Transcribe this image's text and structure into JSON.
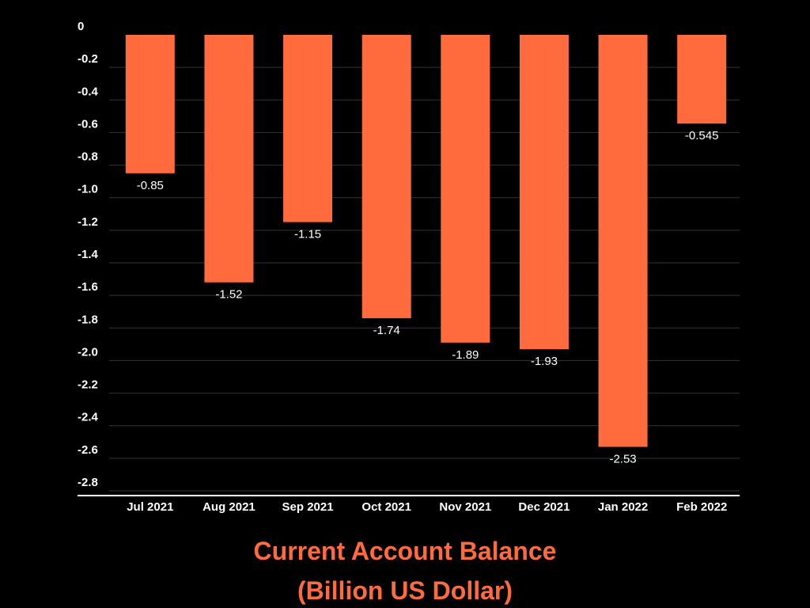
{
  "colors": {
    "background": "#000000",
    "bar": "#ff6b3d",
    "title": "#ff6b3d",
    "grid": "#333333",
    "axis": "#ffffff",
    "text": "#ffffff"
  },
  "chart_data": {
    "type": "bar",
    "title": "Current Account Balance",
    "subtitle": "(Billion US Dollar)",
    "categories": [
      "Jul 2021",
      "Aug 2021",
      "Sep 2021",
      "Oct 2021",
      "Nov 2021",
      "Dec 2021",
      "Jan 2022",
      "Feb 2022"
    ],
    "values": [
      -0.85,
      -1.52,
      -1.15,
      -1.74,
      -1.89,
      -1.93,
      -2.53,
      -0.545
    ],
    "value_labels": [
      "-0.85",
      "-1.52",
      "-1.15",
      "-1.74",
      "-1.89",
      "-1.93",
      "-2.53",
      "-0.545"
    ],
    "y_ticks": [
      "0",
      "-0.2",
      "-0.4",
      "-0.6",
      "-0.8",
      "-1.0",
      "-1.2",
      "-1.4",
      "-1.6",
      "-1.8",
      "-2.0",
      "-2.2",
      "-2.4",
      "-2.6",
      "-2.8"
    ],
    "ylim": [
      -2.8,
      0
    ],
    "grid": true,
    "legend": "none"
  }
}
